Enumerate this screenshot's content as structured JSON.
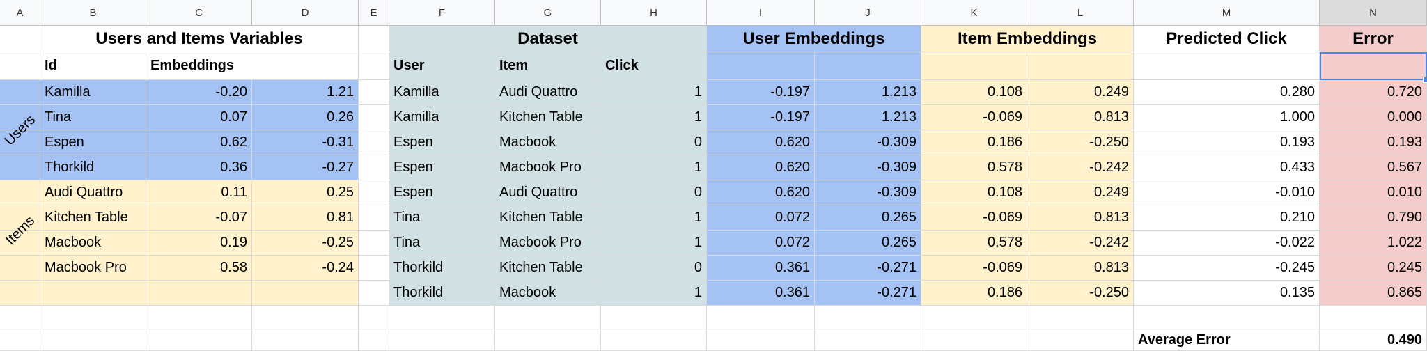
{
  "column_headers": [
    "A",
    "B",
    "C",
    "D",
    "E",
    "F",
    "G",
    "H",
    "I",
    "J",
    "K",
    "L",
    "M",
    "N"
  ],
  "section_titles": {
    "users_items": "Users and Items Variables",
    "dataset": "Dataset",
    "user_emb": "User Embeddings",
    "item_emb": "Item Embeddings",
    "predicted": "Predicted Click",
    "error": "Error"
  },
  "subheaders": {
    "id": "Id",
    "embeddings": "Embeddings",
    "user": "User",
    "item": "Item",
    "click": "Click"
  },
  "group_labels": {
    "users": "Users",
    "items": "Items"
  },
  "variables": [
    {
      "name": "Kamilla",
      "e1": "-0.20",
      "e2": "1.21"
    },
    {
      "name": "Tina",
      "e1": "0.07",
      "e2": "0.26"
    },
    {
      "name": "Espen",
      "e1": "0.62",
      "e2": "-0.31"
    },
    {
      "name": "Thorkild",
      "e1": "0.36",
      "e2": "-0.27"
    },
    {
      "name": "Audi Quattro",
      "e1": "0.11",
      "e2": "0.25"
    },
    {
      "name": "Kitchen Table",
      "e1": "-0.07",
      "e2": "0.81"
    },
    {
      "name": "Macbook",
      "e1": "0.19",
      "e2": "-0.25"
    },
    {
      "name": "Macbook Pro",
      "e1": "0.58",
      "e2": "-0.24"
    },
    {
      "name": "",
      "e1": "",
      "e2": ""
    }
  ],
  "dataset": [
    {
      "user": "Kamilla",
      "item": "Audi Quattro",
      "click": "1",
      "u1": "-0.197",
      "u2": "1.213",
      "i1": "0.108",
      "i2": "0.249",
      "pred": "0.280",
      "err": "0.720"
    },
    {
      "user": "Kamilla",
      "item": "Kitchen Table",
      "click": "1",
      "u1": "-0.197",
      "u2": "1.213",
      "i1": "-0.069",
      "i2": "0.813",
      "pred": "1.000",
      "err": "0.000"
    },
    {
      "user": "Espen",
      "item": "Macbook",
      "click": "0",
      "u1": "0.620",
      "u2": "-0.309",
      "i1": "0.186",
      "i2": "-0.250",
      "pred": "0.193",
      "err": "0.193"
    },
    {
      "user": "Espen",
      "item": "Macbook Pro",
      "click": "1",
      "u1": "0.620",
      "u2": "-0.309",
      "i1": "0.578",
      "i2": "-0.242",
      "pred": "0.433",
      "err": "0.567"
    },
    {
      "user": "Espen",
      "item": "Audi Quattro",
      "click": "0",
      "u1": "0.620",
      "u2": "-0.309",
      "i1": "0.108",
      "i2": "0.249",
      "pred": "-0.010",
      "err": "0.010"
    },
    {
      "user": "Tina",
      "item": "Kitchen Table",
      "click": "1",
      "u1": "0.072",
      "u2": "0.265",
      "i1": "-0.069",
      "i2": "0.813",
      "pred": "0.210",
      "err": "0.790"
    },
    {
      "user": "Tina",
      "item": "Macbook Pro",
      "click": "1",
      "u1": "0.072",
      "u2": "0.265",
      "i1": "0.578",
      "i2": "-0.242",
      "pred": "-0.022",
      "err": "1.022"
    },
    {
      "user": "Thorkild",
      "item": "Kitchen Table",
      "click": "0",
      "u1": "0.361",
      "u2": "-0.271",
      "i1": "-0.069",
      "i2": "0.813",
      "pred": "-0.245",
      "err": "0.245"
    },
    {
      "user": "Thorkild",
      "item": "Macbook",
      "click": "1",
      "u1": "0.361",
      "u2": "-0.271",
      "i1": "0.186",
      "i2": "-0.250",
      "pred": "0.135",
      "err": "0.865"
    }
  ],
  "summary": {
    "label": "Average Error",
    "value": "0.490"
  },
  "colors": {
    "blue": "#a4c2f4",
    "yellow": "#fff2cc",
    "teal": "#d0e0e3",
    "red": "#f4cccc",
    "selection": "#4a86e8"
  }
}
